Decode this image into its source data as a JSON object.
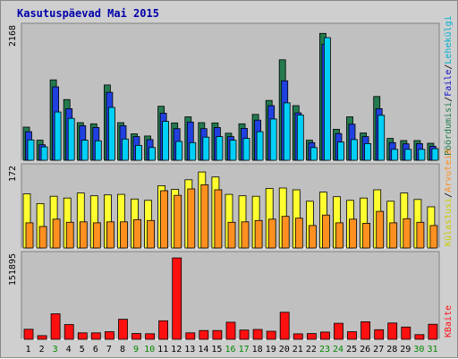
{
  "chart_data": {
    "type": "bar",
    "title": "Kasutuspäevad Mai 2015",
    "categories": [
      "1",
      "2",
      "3",
      "4",
      "5",
      "6",
      "7",
      "8",
      "9",
      "10",
      "11",
      "12",
      "13",
      "14",
      "15",
      "16",
      "17",
      "18",
      "19",
      "20",
      "21",
      "22",
      "23",
      "24",
      "25",
      "26",
      "27",
      "28",
      "29",
      "30",
      "31"
    ],
    "weekend_days": [
      "3",
      "9",
      "10",
      "16",
      "17",
      "23",
      "24",
      "30",
      "31"
    ],
    "colors": {
      "title": "#0000aa",
      "weekday_label": "#000000",
      "weekend_label": "#008800",
      "visits": "#247a4f",
      "pages": "#2040e0",
      "files": "#00d0f8",
      "hits": "#ffff30",
      "sites": "#ff9020",
      "kbytes": "#ff1010",
      "panel_bg": "#c0c0c0"
    },
    "panels": [
      {
        "id": "top",
        "ytick": "2168",
        "ymax": 2168,
        "legend": [
          {
            "label": "Pöördumisi",
            "color": "#247a4f"
          },
          {
            "label": "Faile",
            "color": "#1010c8"
          },
          {
            "label": "Lehekülgi",
            "color": "#00b0d0"
          }
        ],
        "series": [
          {
            "name": "Pöördumisi",
            "color": "#247a4f",
            "values": [
              545,
              330,
              1325,
              1000,
              620,
              600,
              1240,
              620,
              435,
              400,
              890,
              615,
              715,
              620,
              615,
              445,
              600,
              755,
              985,
              1655,
              900,
              330,
              2090,
              510,
              715,
              450,
              1050,
              360,
              325,
              325,
              280
            ]
          },
          {
            "name": "Faile",
            "color": "#2040e0",
            "values": [
              470,
              255,
              1210,
              850,
              570,
              540,
              1120,
              570,
              390,
              340,
              775,
              520,
              630,
              520,
              540,
              390,
              525,
              660,
              900,
              1310,
              780,
              290,
              1910,
              440,
              595,
              390,
              850,
              290,
              270,
              275,
              230
            ]
          },
          {
            "name": "Lehekülgi",
            "color": "#00d0f8",
            "values": [
              335,
              220,
              795,
              690,
              330,
              320,
              870,
              350,
              245,
              210,
              640,
              310,
              290,
              380,
              390,
              330,
              360,
              470,
              680,
              945,
              745,
              210,
              2020,
              300,
              340,
              275,
              740,
              180,
              180,
              180,
              190
            ]
          }
        ]
      },
      {
        "id": "middle",
        "ytick": "172",
        "ymax": 172,
        "legend": [
          {
            "label": "Külastusi",
            "color": "#cccc00"
          },
          {
            "label": "Arvuteid",
            "color": "#ff9020"
          }
        ],
        "series": [
          {
            "name": "Külastusi",
            "color": "#ffff30",
            "values": [
              118,
              97,
              113,
              109,
              120,
              114,
              116,
              117,
              107,
              104,
              136,
              128,
              149,
              166,
              155,
              117,
              114,
              113,
              130,
              131,
              127,
              102,
              122,
              112,
              104,
              109,
              127,
              102,
              120,
              106,
              90
            ]
          },
          {
            "name": "Arvuteid",
            "color": "#ff9020",
            "values": [
              55,
              47,
              63,
              56,
              57,
              55,
              57,
              57,
              62,
              60,
              125,
              115,
              129,
              138,
              127,
              56,
              57,
              60,
              63,
              69,
              65,
              49,
              72,
              55,
              63,
              54,
              80,
              55,
              64,
              56,
              49
            ]
          }
        ]
      },
      {
        "id": "bottom",
        "ytick": "151895",
        "ymax": 151895,
        "legend": [
          {
            "label": "KBaite",
            "color": "#ff1010"
          }
        ],
        "series": [
          {
            "name": "KBaite",
            "color": "#ff1010",
            "values": [
              18500,
              6700,
              47000,
              27300,
              11900,
              11900,
              14100,
              37000,
              10800,
              10300,
              34200,
              150000,
              11900,
              16200,
              16200,
              31500,
              17000,
              18100,
              14900,
              49900,
              10100,
              10600,
              13300,
              29500,
              14000,
              32400,
              17700,
              30000,
              22600,
              8600,
              27700
            ]
          }
        ]
      }
    ]
  }
}
